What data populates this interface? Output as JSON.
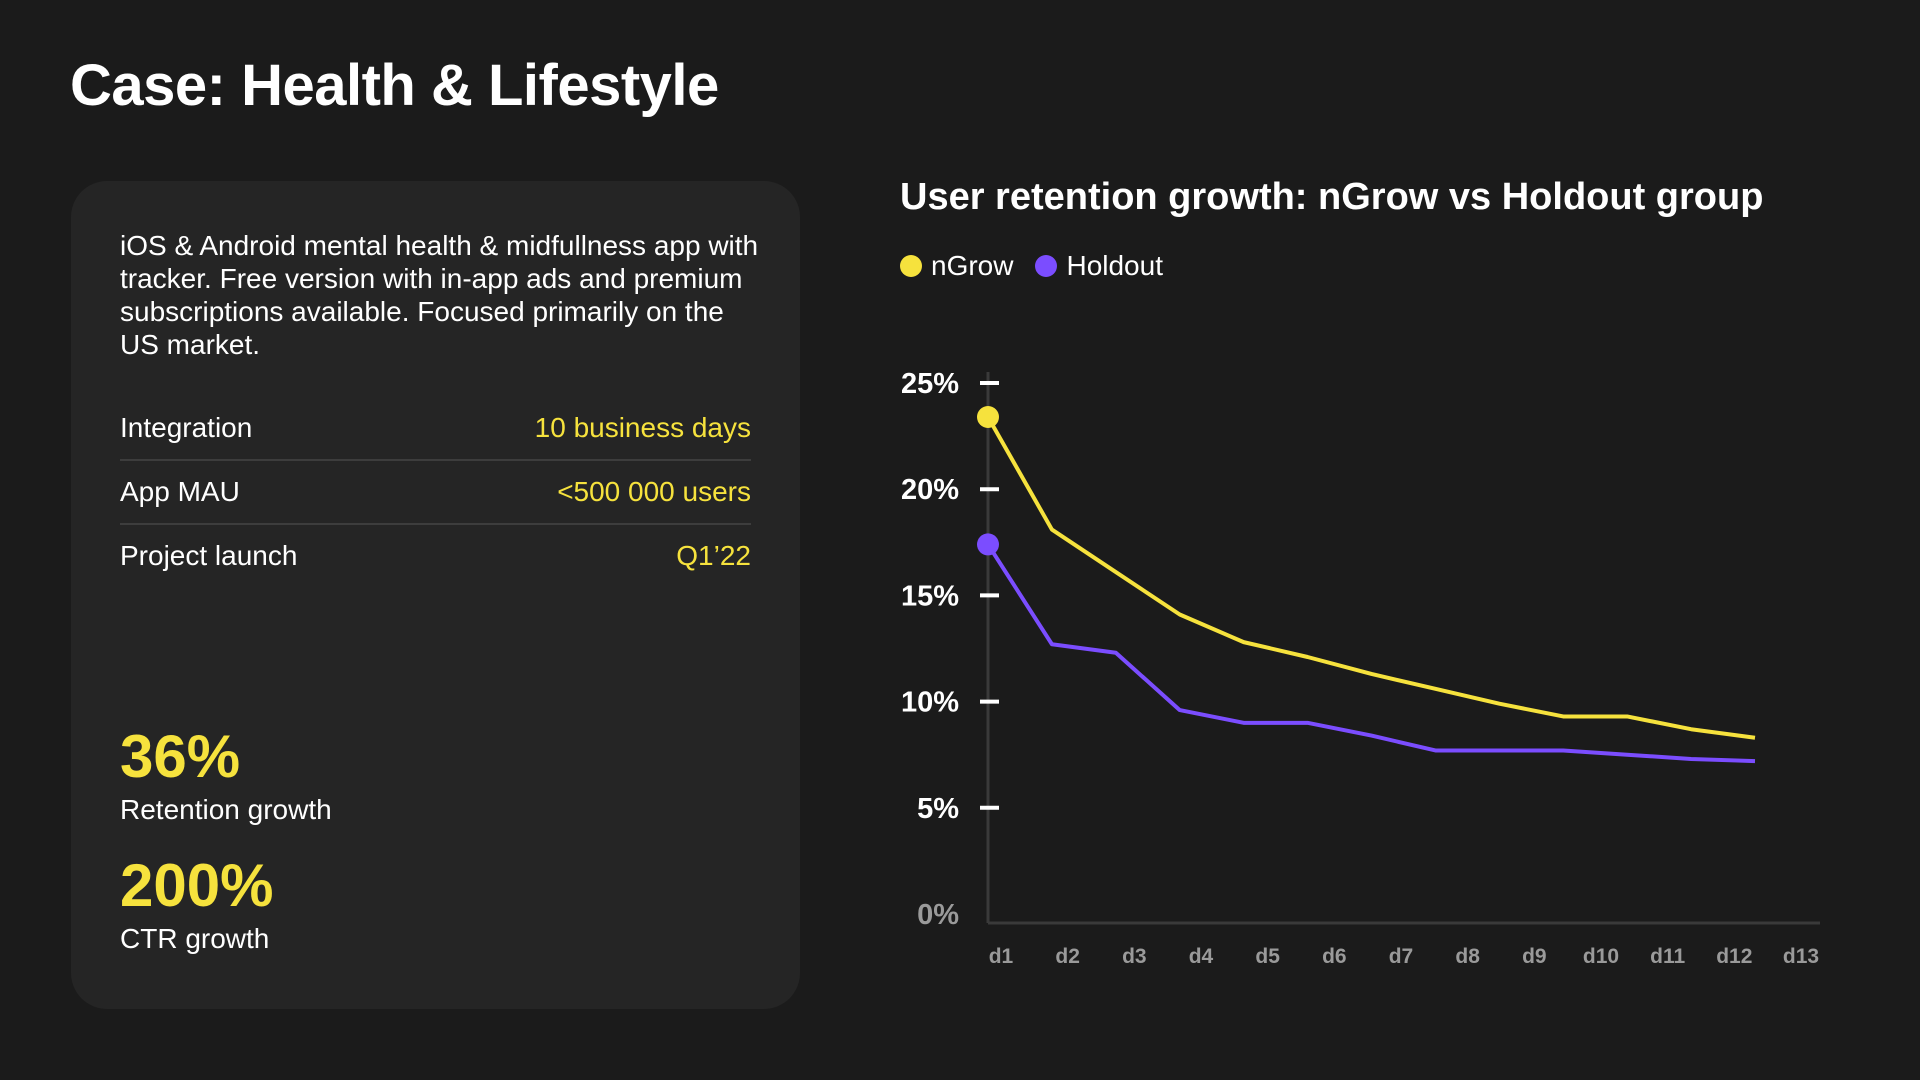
{
  "page": {
    "title": "Case: Health & Lifestyle"
  },
  "card": {
    "description": "iOS & Android mental health & midfullness app with tracker. Free version with in-app ads and premium subscriptions available. Focused primarily on the US market.",
    "facts": [
      {
        "label": "Integration",
        "value": "10 business days"
      },
      {
        "label": "App MAU",
        "value": "<500 000 users"
      },
      {
        "label": "Project launch",
        "value": "Q1’22"
      }
    ],
    "metrics": [
      {
        "value": "36%",
        "label": "Retention growth"
      },
      {
        "value": "200%",
        "label": "CTR growth"
      }
    ]
  },
  "colors": {
    "background": "#1b1b1b",
    "card": "#252525",
    "accent_yellow": "#f6e23d",
    "accent_purple": "#7b4dff"
  },
  "chart_data": {
    "type": "line",
    "title": "User retention growth: nGrow vs Holdout group",
    "xlabel": "",
    "ylabel": "",
    "categories": [
      "d1",
      "d2",
      "d3",
      "d4",
      "d5",
      "d6",
      "d7",
      "d8",
      "d9",
      "d10",
      "d11",
      "d12",
      "d13"
    ],
    "y_ticks": [
      "0%",
      "5%",
      "10%",
      "15%",
      "20%",
      "25%"
    ],
    "ylim": [
      0,
      25
    ],
    "legend": "top-left",
    "series": [
      {
        "name": "nGrow",
        "color": "#f6e23d",
        "values": [
          23.4,
          18.1,
          16.1,
          14.1,
          12.8,
          12.1,
          11.3,
          10.6,
          9.9,
          9.3,
          9.3,
          8.7,
          8.3
        ]
      },
      {
        "name": "Holdout",
        "color": "#7b4dff",
        "values": [
          17.4,
          12.7,
          12.3,
          9.6,
          9.0,
          9.0,
          8.4,
          7.7,
          7.7,
          7.7,
          7.5,
          7.3,
          7.2
        ]
      }
    ]
  }
}
